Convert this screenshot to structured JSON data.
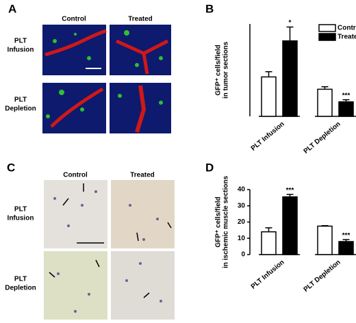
{
  "panels": [
    {
      "label": "A",
      "columns": [
        "Control",
        "Treated"
      ],
      "rows": [
        [
          "PLT",
          "Infusion"
        ],
        [
          "PLT",
          "Depletion"
        ]
      ]
    },
    {
      "label": "C",
      "columns": [
        "Control",
        "Treated"
      ],
      "rows": [
        [
          "PLT",
          "Infusion"
        ],
        [
          "PLT",
          "Depletion"
        ]
      ]
    }
  ],
  "chart_data": [
    {
      "type": "bar",
      "panel_label": "B",
      "ylabel": [
        "GFP⁺ cells/field",
        "in tumor sections"
      ],
      "categories": [
        "PLT Infusion",
        "PLT Depletion"
      ],
      "ylim": [
        0,
        300
      ],
      "legend": true,
      "series": [
        {
          "name": "Control",
          "color": "#ffffff",
          "values": [
            128,
            88
          ],
          "errors": [
            17,
            8
          ],
          "annotations": [
            null,
            null
          ]
        },
        {
          "name": "Treated",
          "color": "#000000",
          "values": [
            245,
            47
          ],
          "errors": [
            45,
            7
          ],
          "annotations": [
            "*",
            "***"
          ]
        }
      ]
    },
    {
      "type": "bar",
      "panel_label": "D",
      "ylabel": [
        "GFP⁺ cells/field",
        "in ischemic muscle sections"
      ],
      "categories": [
        "PLT Infusion",
        "PLT Depletion"
      ],
      "ylim": [
        0,
        40
      ],
      "yticks": [
        0,
        10,
        20,
        30,
        40
      ],
      "legend": false,
      "series": [
        {
          "color": "#ffffff",
          "values": [
            14,
            17.5
          ],
          "errors": [
            2.5,
            0.3
          ],
          "annotations": [
            null,
            null
          ]
        },
        {
          "color": "#000000",
          "values": [
            35.5,
            8
          ],
          "errors": [
            1.5,
            1.2
          ],
          "annotations": [
            "***",
            "***"
          ]
        }
      ]
    }
  ]
}
